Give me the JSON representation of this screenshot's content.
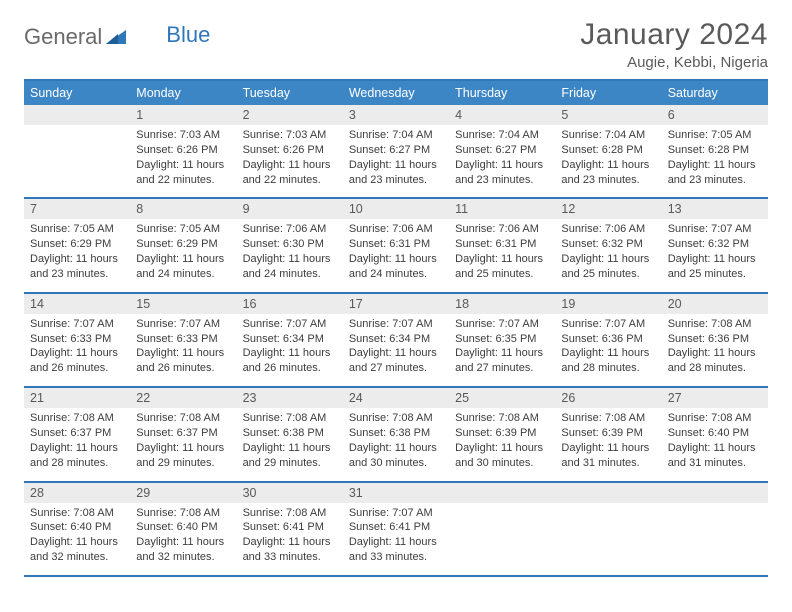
{
  "brand": {
    "part1": "General",
    "part2": "Blue"
  },
  "title": "January 2024",
  "location": "Augie, Kebbi, Nigeria",
  "colors": {
    "accent": "#2f77b8",
    "header_bg": "#3d86c6",
    "header_text": "#ffffff",
    "daynum_bg": "#ececec",
    "text": "#3d3d3d",
    "muted": "#5a5a5a"
  },
  "days_of_week": [
    "Sunday",
    "Monday",
    "Tuesday",
    "Wednesday",
    "Thursday",
    "Friday",
    "Saturday"
  ],
  "weeks": [
    [
      {
        "n": "",
        "sunrise": "",
        "sunset": "",
        "daylight": ""
      },
      {
        "n": "1",
        "sunrise": "Sunrise: 7:03 AM",
        "sunset": "Sunset: 6:26 PM",
        "daylight": "Daylight: 11 hours and 22 minutes."
      },
      {
        "n": "2",
        "sunrise": "Sunrise: 7:03 AM",
        "sunset": "Sunset: 6:26 PM",
        "daylight": "Daylight: 11 hours and 22 minutes."
      },
      {
        "n": "3",
        "sunrise": "Sunrise: 7:04 AM",
        "sunset": "Sunset: 6:27 PM",
        "daylight": "Daylight: 11 hours and 23 minutes."
      },
      {
        "n": "4",
        "sunrise": "Sunrise: 7:04 AM",
        "sunset": "Sunset: 6:27 PM",
        "daylight": "Daylight: 11 hours and 23 minutes."
      },
      {
        "n": "5",
        "sunrise": "Sunrise: 7:04 AM",
        "sunset": "Sunset: 6:28 PM",
        "daylight": "Daylight: 11 hours and 23 minutes."
      },
      {
        "n": "6",
        "sunrise": "Sunrise: 7:05 AM",
        "sunset": "Sunset: 6:28 PM",
        "daylight": "Daylight: 11 hours and 23 minutes."
      }
    ],
    [
      {
        "n": "7",
        "sunrise": "Sunrise: 7:05 AM",
        "sunset": "Sunset: 6:29 PM",
        "daylight": "Daylight: 11 hours and 23 minutes."
      },
      {
        "n": "8",
        "sunrise": "Sunrise: 7:05 AM",
        "sunset": "Sunset: 6:29 PM",
        "daylight": "Daylight: 11 hours and 24 minutes."
      },
      {
        "n": "9",
        "sunrise": "Sunrise: 7:06 AM",
        "sunset": "Sunset: 6:30 PM",
        "daylight": "Daylight: 11 hours and 24 minutes."
      },
      {
        "n": "10",
        "sunrise": "Sunrise: 7:06 AM",
        "sunset": "Sunset: 6:31 PM",
        "daylight": "Daylight: 11 hours and 24 minutes."
      },
      {
        "n": "11",
        "sunrise": "Sunrise: 7:06 AM",
        "sunset": "Sunset: 6:31 PM",
        "daylight": "Daylight: 11 hours and 25 minutes."
      },
      {
        "n": "12",
        "sunrise": "Sunrise: 7:06 AM",
        "sunset": "Sunset: 6:32 PM",
        "daylight": "Daylight: 11 hours and 25 minutes."
      },
      {
        "n": "13",
        "sunrise": "Sunrise: 7:07 AM",
        "sunset": "Sunset: 6:32 PM",
        "daylight": "Daylight: 11 hours and 25 minutes."
      }
    ],
    [
      {
        "n": "14",
        "sunrise": "Sunrise: 7:07 AM",
        "sunset": "Sunset: 6:33 PM",
        "daylight": "Daylight: 11 hours and 26 minutes."
      },
      {
        "n": "15",
        "sunrise": "Sunrise: 7:07 AM",
        "sunset": "Sunset: 6:33 PM",
        "daylight": "Daylight: 11 hours and 26 minutes."
      },
      {
        "n": "16",
        "sunrise": "Sunrise: 7:07 AM",
        "sunset": "Sunset: 6:34 PM",
        "daylight": "Daylight: 11 hours and 26 minutes."
      },
      {
        "n": "17",
        "sunrise": "Sunrise: 7:07 AM",
        "sunset": "Sunset: 6:34 PM",
        "daylight": "Daylight: 11 hours and 27 minutes."
      },
      {
        "n": "18",
        "sunrise": "Sunrise: 7:07 AM",
        "sunset": "Sunset: 6:35 PM",
        "daylight": "Daylight: 11 hours and 27 minutes."
      },
      {
        "n": "19",
        "sunrise": "Sunrise: 7:07 AM",
        "sunset": "Sunset: 6:36 PM",
        "daylight": "Daylight: 11 hours and 28 minutes."
      },
      {
        "n": "20",
        "sunrise": "Sunrise: 7:08 AM",
        "sunset": "Sunset: 6:36 PM",
        "daylight": "Daylight: 11 hours and 28 minutes."
      }
    ],
    [
      {
        "n": "21",
        "sunrise": "Sunrise: 7:08 AM",
        "sunset": "Sunset: 6:37 PM",
        "daylight": "Daylight: 11 hours and 28 minutes."
      },
      {
        "n": "22",
        "sunrise": "Sunrise: 7:08 AM",
        "sunset": "Sunset: 6:37 PM",
        "daylight": "Daylight: 11 hours and 29 minutes."
      },
      {
        "n": "23",
        "sunrise": "Sunrise: 7:08 AM",
        "sunset": "Sunset: 6:38 PM",
        "daylight": "Daylight: 11 hours and 29 minutes."
      },
      {
        "n": "24",
        "sunrise": "Sunrise: 7:08 AM",
        "sunset": "Sunset: 6:38 PM",
        "daylight": "Daylight: 11 hours and 30 minutes."
      },
      {
        "n": "25",
        "sunrise": "Sunrise: 7:08 AM",
        "sunset": "Sunset: 6:39 PM",
        "daylight": "Daylight: 11 hours and 30 minutes."
      },
      {
        "n": "26",
        "sunrise": "Sunrise: 7:08 AM",
        "sunset": "Sunset: 6:39 PM",
        "daylight": "Daylight: 11 hours and 31 minutes."
      },
      {
        "n": "27",
        "sunrise": "Sunrise: 7:08 AM",
        "sunset": "Sunset: 6:40 PM",
        "daylight": "Daylight: 11 hours and 31 minutes."
      }
    ],
    [
      {
        "n": "28",
        "sunrise": "Sunrise: 7:08 AM",
        "sunset": "Sunset: 6:40 PM",
        "daylight": "Daylight: 11 hours and 32 minutes."
      },
      {
        "n": "29",
        "sunrise": "Sunrise: 7:08 AM",
        "sunset": "Sunset: 6:40 PM",
        "daylight": "Daylight: 11 hours and 32 minutes."
      },
      {
        "n": "30",
        "sunrise": "Sunrise: 7:08 AM",
        "sunset": "Sunset: 6:41 PM",
        "daylight": "Daylight: 11 hours and 33 minutes."
      },
      {
        "n": "31",
        "sunrise": "Sunrise: 7:07 AM",
        "sunset": "Sunset: 6:41 PM",
        "daylight": "Daylight: 11 hours and 33 minutes."
      },
      {
        "n": "",
        "sunrise": "",
        "sunset": "",
        "daylight": ""
      },
      {
        "n": "",
        "sunrise": "",
        "sunset": "",
        "daylight": ""
      },
      {
        "n": "",
        "sunrise": "",
        "sunset": "",
        "daylight": ""
      }
    ]
  ]
}
